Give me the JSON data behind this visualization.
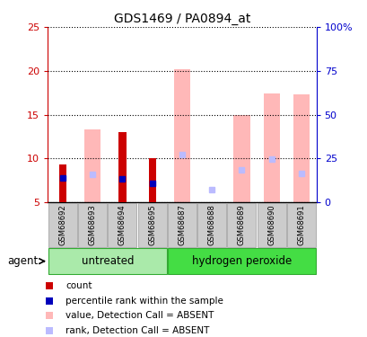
{
  "title": "GDS1469 / PA0894_at",
  "samples": [
    "GSM68692",
    "GSM68693",
    "GSM68694",
    "GSM68695",
    "GSM68687",
    "GSM68688",
    "GSM68689",
    "GSM68690",
    "GSM68691"
  ],
  "groups": [
    {
      "label": "untreated",
      "indices": [
        0,
        1,
        2,
        3
      ],
      "color": "#aaeaaa"
    },
    {
      "label": "hydrogen peroxide",
      "indices": [
        4,
        5,
        6,
        7,
        8
      ],
      "color": "#44dd44"
    }
  ],
  "count": [
    9.3,
    null,
    13.0,
    10.0,
    null,
    null,
    null,
    null,
    null
  ],
  "percentile_rank": [
    7.8,
    null,
    7.7,
    7.2,
    null,
    null,
    null,
    null,
    null
  ],
  "value_absent": [
    null,
    13.3,
    null,
    null,
    20.2,
    null,
    14.9,
    17.4,
    17.3
  ],
  "rank_absent": [
    null,
    8.2,
    null,
    null,
    10.4,
    6.4,
    8.7,
    9.9,
    8.3
  ],
  "ylim_left": [
    5,
    25
  ],
  "ylim_right": [
    0,
    100
  ],
  "yticks_left": [
    5,
    10,
    15,
    20,
    25
  ],
  "yticks_right": [
    0,
    25,
    50,
    75,
    100
  ],
  "ytick_labels_right": [
    "0",
    "25",
    "50",
    "75",
    "100%"
  ],
  "left_axis_color": "#cc0000",
  "right_axis_color": "#0000cc",
  "count_color": "#cc0000",
  "percentile_color": "#0000bb",
  "value_absent_color": "#ffb8b8",
  "rank_absent_color": "#bbbbff",
  "grid_color": "black",
  "agent_label": "agent",
  "tick_bg": "#cccccc"
}
